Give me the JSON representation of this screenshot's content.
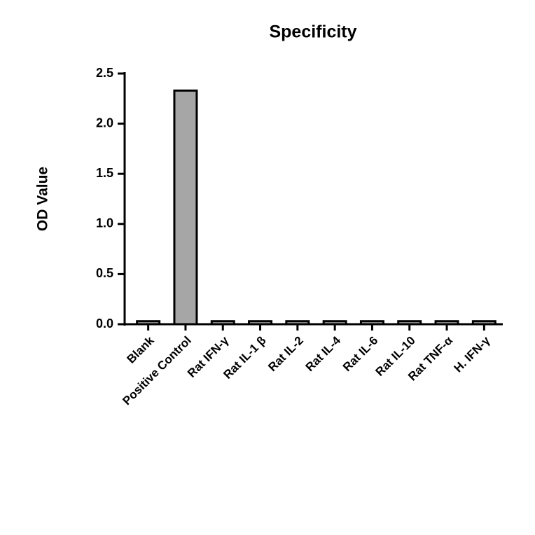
{
  "chart_data": {
    "type": "bar",
    "title": "Specificity",
    "y_label": "OD Value",
    "categories": [
      "Blank",
      "Positive Control",
      "Rat IFN-γ",
      "Rat IL-1 β",
      "Rat IL-2",
      "Rat IL-4",
      "Rat IL-6",
      "Rat IL-10",
      "Rat TNF-α",
      "H. IFN-γ"
    ],
    "values": [
      0.03,
      2.33,
      0.03,
      0.03,
      0.03,
      0.03,
      0.03,
      0.03,
      0.03,
      0.03
    ],
    "color": "#a6a6a6",
    "ylim": [
      0,
      2.5
    ],
    "yticks": [
      {
        "value": 0,
        "label": "0.0"
      },
      0.5,
      {
        "value": 1,
        "label": "1.0"
      },
      1.5,
      {
        "value": 2,
        "label": "2.0"
      },
      2.5
    ]
  }
}
